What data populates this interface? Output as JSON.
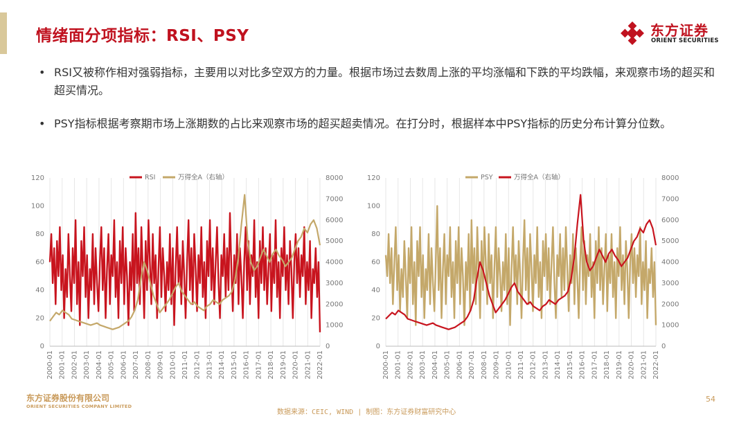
{
  "title": "情绪面分项指标：RSI、PSY",
  "logo": {
    "cn": "东方证券",
    "en": "ORIENT SECURITIES"
  },
  "bullets": [
    "RSI又被称作相对强弱指标，主要用以对比多空双方的力量。根据市场过去数周上涨的平均涨幅和下跌的平均跌幅，来观察市场的超买和超买情况。",
    "PSY指标根据考察期市场上涨期数的占比来观察市场的超买超卖情况。在打分时，根据样本中PSY指标的历史分布计算分位数。"
  ],
  "bullet_glyph": "•",
  "colors": {
    "red": "#c8141e",
    "gold": "#c4a86a",
    "title": "#c0121f"
  },
  "chart_data": [
    {
      "type": "line",
      "x_labels": [
        "2000-01",
        "2001-01",
        "2002-01",
        "2003-01",
        "2004-01",
        "2005-01",
        "2006-01",
        "2007-01",
        "2008-01",
        "2009-01",
        "2010-01",
        "2011-01",
        "2012-01",
        "2013-01",
        "2014-01",
        "2015-01",
        "2016-01",
        "2017-01",
        "2018-01",
        "2019-01",
        "2020-01",
        "2021-01",
        "2022-01"
      ],
      "y_left": {
        "ticks": [
          0,
          20,
          40,
          60,
          80,
          100,
          120
        ],
        "range": [
          0,
          120
        ]
      },
      "y_right": {
        "ticks": [
          0,
          1000,
          2000,
          3000,
          4000,
          5000,
          6000,
          7000,
          8000
        ],
        "range": [
          0,
          8000
        ]
      },
      "legend": [
        "RSI",
        "万得全A（右轴）"
      ],
      "series": [
        {
          "name": "RSI",
          "axis": "left",
          "color": "#c8141e",
          "width": 2.4,
          "values": [
            60,
            80,
            45,
            70,
            30,
            75,
            50,
            85,
            40,
            65,
            20,
            55,
            35,
            80,
            50,
            25,
            70,
            45,
            90,
            30,
            60,
            15,
            75,
            50,
            85,
            35,
            65,
            20,
            55,
            40,
            80,
            30,
            70,
            45,
            25,
            60,
            85,
            40,
            70,
            20,
            55,
            80,
            30,
            65,
            50,
            90,
            35,
            60,
            20,
            75,
            45,
            85,
            30,
            70,
            50,
            15,
            60,
            40,
            80,
            25,
            95,
            45,
            70,
            30,
            85,
            55,
            20,
            75,
            40,
            90,
            60,
            30,
            80,
            45,
            65,
            20,
            55,
            85,
            35,
            70,
            50,
            25,
            60,
            40,
            80,
            30,
            70,
            15,
            55,
            85,
            45,
            65,
            30,
            75,
            50,
            20,
            60,
            90,
            40,
            70,
            30,
            80,
            55,
            25,
            65,
            45,
            85,
            35,
            60,
            20,
            75,
            50,
            90,
            40,
            70,
            30,
            60,
            85,
            45,
            20,
            65,
            50,
            80,
            35,
            70,
            40,
            95,
            55,
            25,
            65,
            45,
            80,
            30,
            70,
            50,
            20,
            60,
            85,
            40,
            75,
            30,
            65,
            50,
            90,
            35,
            60,
            20,
            75,
            45,
            85,
            40,
            70,
            30,
            55,
            80,
            25,
            65,
            45,
            90,
            35,
            60,
            20,
            70,
            50,
            85,
            40,
            65,
            30,
            75,
            55,
            20,
            60,
            80,
            45,
            70,
            35,
            65,
            50,
            85,
            30,
            60,
            40,
            75,
            20,
            55,
            45,
            70,
            35,
            60,
            10
          ]
        },
        {
          "name": "万得全A（右轴）",
          "axis": "right",
          "color": "#c4a86a",
          "width": 2.2,
          "values": [
            1200,
            1400,
            1600,
            1500,
            1700,
            1600,
            1500,
            1300,
            1250,
            1200,
            1150,
            1100,
            1050,
            1000,
            1050,
            1100,
            1000,
            950,
            900,
            850,
            800,
            850,
            900,
            1000,
            1100,
            1200,
            1400,
            1700,
            2200,
            3200,
            4000,
            3600,
            3000,
            2400,
            2000,
            1600,
            1800,
            2000,
            2200,
            2500,
            2800,
            3000,
            2600,
            2400,
            2200,
            2000,
            2100,
            1900,
            1800,
            1700,
            1900,
            2000,
            2200,
            2100,
            2000,
            2200,
            2300,
            2400,
            2600,
            3200,
            4200,
            5800,
            7200,
            5000,
            4000,
            3600,
            3800,
            4200,
            4600,
            4300,
            4000,
            4400,
            4600,
            4300,
            4100,
            3800,
            4000,
            4200,
            4600,
            5000,
            5200,
            5600,
            5400,
            5800,
            6000,
            5600,
            4800
          ]
        }
      ]
    },
    {
      "type": "line",
      "x_labels": [
        "2000-01",
        "2001-01",
        "2002-01",
        "2003-01",
        "2004-01",
        "2005-01",
        "2006-01",
        "2007-01",
        "2008-01",
        "2009-01",
        "2010-01",
        "2011-01",
        "2012-01",
        "2013-01",
        "2014-01",
        "2015-01",
        "2016-01",
        "2017-01",
        "2018-01",
        "2019-01",
        "2020-01",
        "2021-01",
        "2022-01"
      ],
      "y_left": {
        "ticks": [
          0,
          20,
          40,
          60,
          80,
          100,
          120
        ],
        "range": [
          0,
          120
        ]
      },
      "y_right": {
        "ticks": [
          0,
          1000,
          2000,
          3000,
          4000,
          5000,
          6000,
          7000,
          8000
        ],
        "range": [
          0,
          8000
        ]
      },
      "legend": [
        "PSY",
        "万得全A（右轴）"
      ],
      "series": [
        {
          "name": "PSY",
          "axis": "left",
          "color": "#c4a86a",
          "width": 2.4,
          "values": [
            65,
            50,
            80,
            45,
            70,
            30,
            60,
            85,
            40,
            65,
            25,
            55,
            35,
            75,
            50,
            20,
            70,
            45,
            85,
            30,
            60,
            15,
            75,
            50,
            85,
            35,
            65,
            20,
            55,
            40,
            80,
            30,
            70,
            45,
            25,
            60,
            100,
            40,
            70,
            20,
            55,
            80,
            30,
            65,
            50,
            85,
            35,
            60,
            20,
            75,
            45,
            85,
            30,
            70,
            50,
            15,
            60,
            40,
            80,
            25,
            90,
            45,
            70,
            30,
            85,
            55,
            20,
            75,
            40,
            85,
            60,
            30,
            80,
            45,
            65,
            20,
            55,
            85,
            35,
            70,
            50,
            25,
            60,
            40,
            80,
            30,
            70,
            15,
            55,
            85,
            45,
            65,
            30,
            75,
            50,
            20,
            60,
            90,
            40,
            70,
            30,
            80,
            55,
            25,
            65,
            45,
            85,
            35,
            60,
            20,
            75,
            50,
            80,
            40,
            70,
            30,
            60,
            85,
            45,
            20,
            65,
            50,
            80,
            35,
            70,
            40,
            85,
            55,
            25,
            65,
            45,
            80,
            30,
            70,
            50,
            20,
            60,
            85,
            40,
            75,
            30,
            65,
            50,
            80,
            35,
            60,
            20,
            75,
            45,
            85,
            40,
            70,
            30,
            55,
            80,
            25,
            65,
            45,
            80,
            35,
            60,
            20,
            70,
            50,
            85,
            40,
            65,
            30,
            75,
            55,
            20,
            60,
            80,
            45,
            70,
            35,
            65,
            50,
            85,
            30,
            60,
            40,
            75,
            20,
            55,
            45,
            70,
            35,
            60,
            15
          ]
        },
        {
          "name": "万得全A（右轴）",
          "axis": "right",
          "color": "#c8141e",
          "width": 2.2,
          "values": [
            1300,
            1450,
            1600,
            1500,
            1700,
            1600,
            1500,
            1300,
            1250,
            1200,
            1150,
            1100,
            1050,
            1000,
            1050,
            1100,
            1000,
            950,
            900,
            850,
            800,
            850,
            900,
            1000,
            1100,
            1200,
            1400,
            1700,
            2200,
            3200,
            4000,
            3600,
            3000,
            2400,
            2000,
            1600,
            1800,
            2000,
            2200,
            2500,
            2800,
            3000,
            2600,
            2400,
            2200,
            2000,
            2100,
            1900,
            1800,
            1700,
            1900,
            2000,
            2200,
            2100,
            2000,
            2200,
            2300,
            2400,
            2600,
            3200,
            4200,
            5800,
            7200,
            5000,
            4000,
            3600,
            3800,
            4200,
            4600,
            4300,
            4000,
            4400,
            4600,
            4300,
            4100,
            3800,
            4000,
            4200,
            4600,
            5000,
            5200,
            5600,
            5400,
            5800,
            6000,
            5600,
            4800
          ]
        }
      ]
    }
  ],
  "footer": {
    "company_cn": "东方证券股份有限公司",
    "company_en": "ORIENT SECURITIES COMPANY LIMITED",
    "source": "数据来源：CEIC, WIND  | 制图：东方证券财富研究中心",
    "page": "54"
  }
}
